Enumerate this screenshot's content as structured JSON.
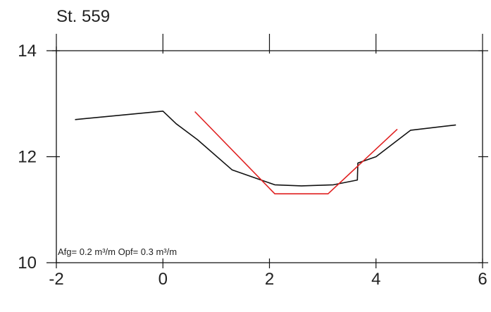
{
  "chart_data": {
    "type": "line",
    "title": "St. 559",
    "xlim": [
      -2,
      6
    ],
    "ylim": [
      10,
      14
    ],
    "x_ticks": [
      -2,
      0,
      2,
      4,
      6
    ],
    "x_tick_labels": [
      "-2",
      "0",
      "2",
      "4",
      "6"
    ],
    "y_ticks": [
      10,
      12,
      14
    ],
    "y_tick_labels": [
      "10",
      "12",
      "14"
    ],
    "grid": false,
    "annotation": "Afg= 0.2 m³/m  Opf= 0.3 m³/m",
    "series": [
      {
        "color": "#111111",
        "x": [
          -1.65,
          0.0,
          0.25,
          0.65,
          1.3,
          2.1,
          2.6,
          3.2,
          3.65,
          3.66,
          4.0,
          4.65,
          5.5
        ],
        "y": [
          12.7,
          12.86,
          12.62,
          12.32,
          11.75,
          11.47,
          11.45,
          11.47,
          11.56,
          11.88,
          12.0,
          12.5,
          12.6
        ]
      },
      {
        "color": "#e02020",
        "x": [
          0.6,
          2.1,
          3.1,
          4.4
        ],
        "y": [
          12.85,
          11.3,
          11.3,
          12.52
        ]
      }
    ]
  }
}
